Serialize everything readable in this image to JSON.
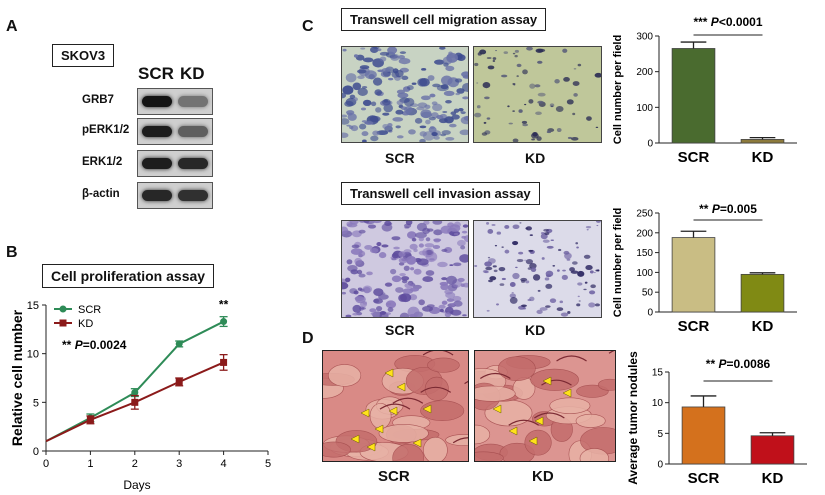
{
  "panels": {
    "a": "A",
    "b": "B",
    "c": "C",
    "d": "D"
  },
  "blot": {
    "cell_line": "SKOV3",
    "lanes": [
      "SCR",
      "KD"
    ],
    "rows": [
      {
        "label": "GRB7",
        "scr": 0.95,
        "kd": 0.45
      },
      {
        "label": "pERK1/2",
        "scr": 0.9,
        "kd": 0.55
      },
      {
        "label": "ERK1/2",
        "scr": 0.9,
        "kd": 0.85
      },
      {
        "label": "β-actin",
        "scr": 0.85,
        "kd": 0.8
      }
    ]
  },
  "proliferation": {
    "title": "Cell proliferation assay",
    "stat": "** P=0.0024",
    "day4_marker": "**",
    "chart_data": {
      "type": "line",
      "title": "Cell proliferation assay",
      "xlabel": "Days",
      "ylabel": "Relative cell number",
      "xlim": [
        0,
        5
      ],
      "ylim": [
        0,
        15
      ],
      "xticks": [
        "0",
        "1",
        "2",
        "3",
        "4",
        "5"
      ],
      "yticks": [
        "0",
        "5",
        "10",
        "15"
      ],
      "x": [
        1,
        2,
        3,
        4
      ],
      "series": [
        {
          "name": "SCR",
          "color": "#2e8b57",
          "origin": [
            0,
            1
          ],
          "values": [
            3.4,
            6.0,
            11.0,
            13.3
          ],
          "errors": [
            0.4,
            0.4,
            0.3,
            0.5
          ]
        },
        {
          "name": "KD",
          "color": "#8b1a1a",
          "origin": [
            0,
            1
          ],
          "values": [
            3.2,
            5.0,
            7.1,
            9.1
          ],
          "errors": [
            0.4,
            0.7,
            0.4,
            0.8
          ]
        }
      ]
    }
  },
  "migration": {
    "title": "Transwell cell migration assay",
    "img_labels": [
      "SCR",
      "KD"
    ],
    "stat_stars": "***",
    "stat_p": "P<0.0001",
    "chart_data": {
      "type": "bar",
      "ylabel": "Cell number per field",
      "ylim": [
        0,
        300
      ],
      "yticks": [
        "0",
        "100",
        "200",
        "300"
      ],
      "categories": [
        "SCR",
        "KD"
      ],
      "values": [
        265,
        10
      ],
      "errors": [
        18,
        5
      ],
      "colors": [
        "#4a6b2f",
        "#8c7a3c"
      ]
    }
  },
  "invasion": {
    "title": "Transwell cell invasion assay",
    "img_labels": [
      "SCR",
      "KD"
    ],
    "stat_stars": "**",
    "stat_p": "P=0.005",
    "chart_data": {
      "type": "bar",
      "ylabel": "Cell number per field",
      "ylim": [
        0,
        250
      ],
      "yticks": [
        "0",
        "50",
        "100",
        "150",
        "200",
        "250"
      ],
      "categories": [
        "SCR",
        "KD"
      ],
      "values": [
        188,
        95
      ],
      "errors": [
        16,
        4
      ],
      "colors": [
        "#c9bd84",
        "#808a14"
      ]
    }
  },
  "tumor": {
    "img_labels": [
      "SCR",
      "KD"
    ],
    "stat_stars": "**",
    "stat_p": "P=0.0086",
    "chart_data": {
      "type": "bar",
      "ylabel": "Average tumor nodules",
      "ylim": [
        0,
        15
      ],
      "yticks": [
        "0",
        "5",
        "10",
        "15"
      ],
      "categories": [
        "SCR",
        "KD"
      ],
      "values": [
        9.3,
        4.6
      ],
      "errors": [
        1.8,
        0.5
      ],
      "colors": [
        "#d4711d",
        "#c0101a"
      ]
    }
  }
}
